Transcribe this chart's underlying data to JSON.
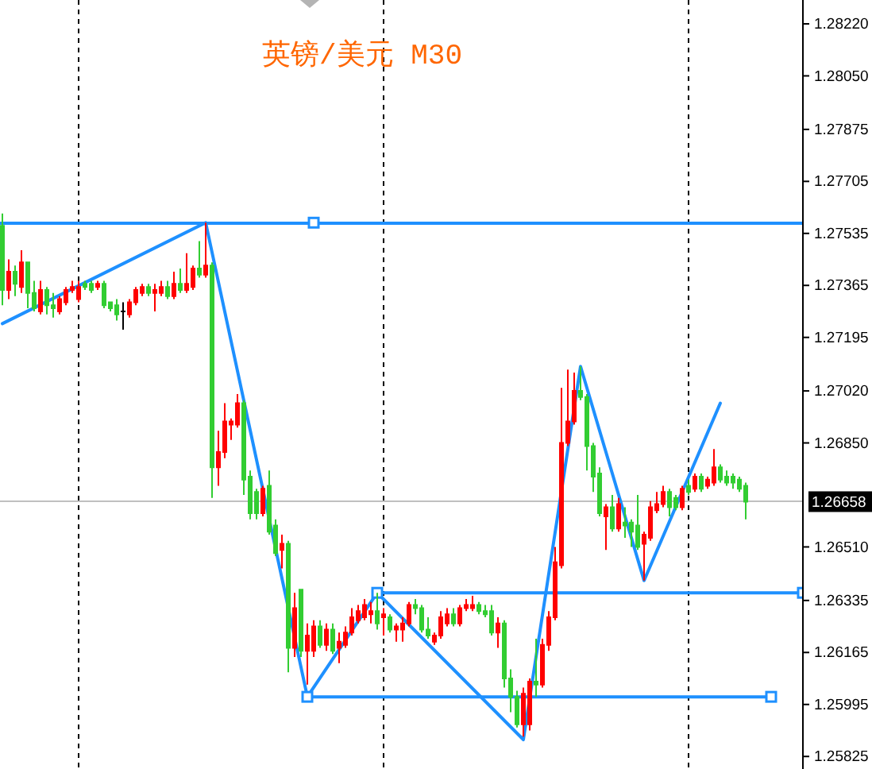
{
  "chart_data": {
    "type": "candlestick",
    "title": "英镑/美元 M30",
    "categories": [
      null,
      null,
      null,
      null,
      null,
      null,
      null,
      null,
      null,
      null,
      null,
      null,
      null,
      null,
      null,
      null,
      null,
      null,
      null,
      null,
      null,
      null,
      null,
      null,
      null,
      null,
      null,
      null,
      null,
      null,
      null,
      null,
      null,
      null,
      null,
      null,
      null,
      null,
      null,
      null,
      null,
      null,
      null,
      null,
      null,
      null,
      null,
      null,
      null,
      null,
      null,
      null,
      null,
      null,
      null,
      null,
      null,
      null,
      null,
      null,
      null,
      null,
      null,
      null,
      null,
      null,
      null,
      null,
      null,
      null,
      null,
      null,
      null,
      null,
      null,
      null,
      null,
      null,
      null,
      null,
      null,
      null,
      null,
      null,
      null,
      null,
      null,
      null,
      null,
      null,
      null,
      null,
      null,
      null,
      null,
      null,
      null,
      null,
      null,
      null,
      null,
      null,
      null,
      null,
      null,
      null,
      null,
      null,
      null,
      null,
      null,
      null,
      null,
      null,
      null,
      null,
      null,
      null,
      null,
      null,
      null,
      null,
      null,
      null,
      null,
      null,
      null
    ],
    "ohlc": [
      [
        1.2756,
        1.276,
        1.273,
        1.2735
      ],
      [
        1.2735,
        1.2745,
        1.2732,
        1.2741
      ],
      [
        1.2741,
        1.2743,
        1.2733,
        1.2737
      ],
      [
        1.2736,
        1.2748,
        1.2734,
        1.2744
      ],
      [
        1.2744,
        1.2744,
        1.2729,
        1.2734
      ],
      [
        1.2734,
        1.2738,
        1.2728,
        1.2729
      ],
      [
        1.2728,
        1.2738,
        1.2727,
        1.2735
      ],
      [
        1.2735,
        1.2736,
        1.2727,
        1.273
      ],
      [
        1.273,
        1.2734,
        1.2726,
        1.2729
      ],
      [
        1.2728,
        1.2733,
        1.2727,
        1.2732
      ],
      [
        1.2731,
        1.2736,
        1.273,
        1.2735
      ],
      [
        1.2735,
        1.2738,
        1.2734,
        1.2736
      ],
      [
        1.2732,
        1.2738,
        1.2731,
        1.2736
      ],
      [
        1.2737,
        1.2738,
        1.2735,
        1.2736
      ],
      [
        1.2737,
        1.2738,
        1.2734,
        1.2735
      ],
      [
        1.2736,
        1.2738,
        1.2735,
        1.2737
      ],
      [
        1.2737,
        1.2738,
        1.2729,
        1.273
      ],
      [
        1.2731,
        1.2731,
        1.2728,
        1.2729
      ],
      [
        1.273,
        1.2732,
        1.2725,
        1.2727
      ],
      [
        1.2728,
        1.2731,
        1.2722,
        1.2728
      ],
      [
        1.2727,
        1.2732,
        1.2726,
        1.2731
      ],
      [
        1.2731,
        1.2736,
        1.273,
        1.2735
      ],
      [
        1.2734,
        1.2737,
        1.2733,
        1.2736
      ],
      [
        1.2736,
        1.2737,
        1.2733,
        1.2734
      ],
      [
        1.2734,
        1.2737,
        1.2728,
        1.2735
      ],
      [
        1.2734,
        1.2738,
        1.2733,
        1.2736
      ],
      [
        1.2736,
        1.2738,
        1.2732,
        1.2733
      ],
      [
        1.2733,
        1.2741,
        1.2732,
        1.2737
      ],
      [
        1.2737,
        1.2742,
        1.2734,
        1.2735
      ],
      [
        1.2735,
        1.2747,
        1.2734,
        1.2737
      ],
      [
        1.2736,
        1.2743,
        1.2735,
        1.2742
      ],
      [
        1.2742,
        1.2751,
        1.2739,
        1.274
      ],
      [
        1.274,
        1.2757,
        1.2739,
        1.2743
      ],
      [
        1.2743,
        1.2744,
        1.2667,
        1.2677
      ],
      [
        1.2677,
        1.2689,
        1.2671,
        1.2682
      ],
      [
        1.2682,
        1.2698,
        1.268,
        1.2692
      ],
      [
        1.2691,
        1.2693,
        1.2686,
        1.2692
      ],
      [
        1.2691,
        1.2701,
        1.269,
        1.2698
      ],
      [
        1.2698,
        1.2699,
        1.2668,
        1.2673
      ],
      [
        1.2674,
        1.2676,
        1.266,
        1.2662
      ],
      [
        1.2669,
        1.267,
        1.266,
        1.2662
      ],
      [
        1.2662,
        1.2671,
        1.2661,
        1.267
      ],
      [
        1.2671,
        1.2676,
        1.2655,
        1.2656
      ],
      [
        1.2658,
        1.266,
        1.2648,
        1.2649
      ],
      [
        1.265,
        1.2655,
        1.2644,
        1.2652
      ],
      [
        1.2652,
        1.2653,
        1.261,
        1.2618
      ],
      [
        1.2618,
        1.2636,
        1.2615,
        1.2631
      ],
      [
        1.2637,
        1.2637,
        1.2615,
        1.2617
      ],
      [
        1.2617,
        1.2626,
        1.2606,
        1.2622
      ],
      [
        1.2617,
        1.2627,
        1.2615,
        1.2625
      ],
      [
        1.2625,
        1.2627,
        1.2618,
        1.2619
      ],
      [
        1.2619,
        1.2626,
        1.2617,
        1.2624
      ],
      [
        1.2624,
        1.2626,
        1.2616,
        1.2617
      ],
      [
        1.2618,
        1.2623,
        1.2613,
        1.262
      ],
      [
        1.2619,
        1.2625,
        1.2618,
        1.2623
      ],
      [
        1.2623,
        1.2631,
        1.2622,
        1.2628
      ],
      [
        1.2627,
        1.2632,
        1.2626,
        1.263
      ],
      [
        1.2628,
        1.2634,
        1.2627,
        1.2632
      ],
      [
        1.2629,
        1.2633,
        1.2626,
        1.263
      ],
      [
        1.263,
        1.2636,
        1.2624,
        1.2626
      ],
      [
        1.2628,
        1.2631,
        1.2622,
        1.2629
      ],
      [
        1.2628,
        1.2629,
        1.2623,
        1.2624
      ],
      [
        1.2624,
        1.2626,
        1.262,
        1.2625
      ],
      [
        1.2624,
        1.2628,
        1.262,
        1.2626
      ],
      [
        1.2626,
        1.2633,
        1.2625,
        1.2632
      ],
      [
        1.2632,
        1.2634,
        1.2629,
        1.2631
      ],
      [
        1.2631,
        1.2632,
        1.2623,
        1.2624
      ],
      [
        1.2624,
        1.2628,
        1.2621,
        1.2622
      ],
      [
        1.262,
        1.2623,
        1.2619,
        1.2622
      ],
      [
        1.2622,
        1.263,
        1.2621,
        1.2628
      ],
      [
        1.2626,
        1.2631,
        1.2625,
        1.2629
      ],
      [
        1.2629,
        1.2631,
        1.2625,
        1.2626
      ],
      [
        1.2626,
        1.2632,
        1.2625,
        1.2631
      ],
      [
        1.2631,
        1.2634,
        1.263,
        1.2632
      ],
      [
        1.2631,
        1.2635,
        1.263,
        1.2632
      ],
      [
        1.2632,
        1.2633,
        1.2629,
        1.263
      ],
      [
        1.263,
        1.2632,
        1.2628,
        1.2629
      ],
      [
        1.263,
        1.2632,
        1.2622,
        1.2623
      ],
      [
        1.2623,
        1.2628,
        1.2618,
        1.2626
      ],
      [
        1.2626,
        1.2627,
        1.2605,
        1.2608
      ],
      [
        1.2608,
        1.2611,
        1.2597,
        1.2602
      ],
      [
        1.2602,
        1.2604,
        1.2592,
        1.2593
      ],
      [
        1.2593,
        1.2605,
        1.2589,
        1.2603
      ],
      [
        1.2593,
        1.2608,
        1.2591,
        1.2607
      ],
      [
        1.2607,
        1.2621,
        1.2602,
        1.2606
      ],
      [
        1.2606,
        1.2621,
        1.2605,
        1.2619
      ],
      [
        1.2619,
        1.263,
        1.2617,
        1.2628
      ],
      [
        1.2628,
        1.2651,
        1.2627,
        1.2646
      ],
      [
        1.2645,
        1.2703,
        1.2644,
        1.2685
      ],
      [
        1.2685,
        1.2709,
        1.2684,
        1.2692
      ],
      [
        1.2692,
        1.2708,
        1.2691,
        1.2702
      ],
      [
        1.2702,
        1.271,
        1.2699,
        1.27
      ],
      [
        1.27,
        1.2701,
        1.2676,
        1.2684
      ],
      [
        1.2684,
        1.2685,
        1.2669,
        1.2674
      ],
      [
        1.2675,
        1.2677,
        1.2661,
        1.2662
      ],
      [
        1.2661,
        1.2665,
        1.265,
        1.2664
      ],
      [
        1.2664,
        1.2668,
        1.2656,
        1.2657
      ],
      [
        1.2657,
        1.2667,
        1.2656,
        1.2665
      ],
      [
        1.2659,
        1.2664,
        1.2654,
        1.2658
      ],
      [
        1.2659,
        1.266,
        1.2651,
        1.2656
      ],
      [
        1.2658,
        1.2668,
        1.265,
        1.2651
      ],
      [
        1.2652,
        1.2656,
        1.264,
        1.2655
      ],
      [
        1.2654,
        1.2666,
        1.2653,
        1.2664
      ],
      [
        1.2663,
        1.2669,
        1.2662,
        1.2665
      ],
      [
        1.2665,
        1.2671,
        1.2664,
        1.2669
      ],
      [
        1.2669,
        1.267,
        1.2661,
        1.2664
      ],
      [
        1.2667,
        1.2668,
        1.2663,
        1.2664
      ],
      [
        1.2664,
        1.2671,
        1.2663,
        1.267
      ],
      [
        1.2671,
        1.2673,
        1.2668,
        1.2669
      ],
      [
        1.267,
        1.2675,
        1.2669,
        1.2674
      ],
      [
        1.2674,
        1.2675,
        1.2669,
        1.267
      ],
      [
        1.2671,
        1.2674,
        1.267,
        1.2673
      ],
      [
        1.2672,
        1.2683,
        1.2671,
        1.2677
      ],
      [
        1.2677,
        1.2678,
        1.2672,
        1.2673
      ],
      [
        1.2674,
        1.2676,
        1.2671,
        1.2672
      ],
      [
        1.2674,
        1.2675,
        1.267,
        1.2672
      ],
      [
        1.2673,
        1.2674,
        1.2669,
        1.267
      ],
      [
        1.2671,
        1.2672,
        1.266,
        1.26658
      ],
      null,
      null,
      null,
      null,
      null,
      null,
      null,
      null,
      null
    ],
    "colors": [
      "#32cd32",
      "#ff0000",
      "#32cd32",
      "#ff0000",
      "#32cd32",
      "#32cd32",
      "#ff0000",
      "#32cd32",
      "#32cd32",
      "#ff0000",
      "#ff0000",
      "#ff0000",
      "#ff0000",
      "#32cd32",
      "#32cd32",
      "#ff0000",
      "#32cd32",
      "#32cd32",
      "#32cd32",
      "#000000",
      "#ff0000",
      "#ff0000",
      "#ff0000",
      "#32cd32",
      "#ff0000",
      "#ff0000",
      "#32cd32",
      "#ff0000",
      "#32cd32",
      "#ff0000",
      "#ff0000",
      "#32cd32",
      "#ff0000",
      "#32cd32",
      "#ff0000",
      "#ff0000",
      "#ff0000",
      "#ff0000",
      "#32cd32",
      "#32cd32",
      "#32cd32",
      "#ff0000",
      "#32cd32",
      "#32cd32",
      "#ff0000",
      "#32cd32",
      "#ff0000",
      "#32cd32",
      "#ff0000",
      "#ff0000",
      "#32cd32",
      "#ff0000",
      "#32cd32",
      "#ff0000",
      "#ff0000",
      "#ff0000",
      "#ff0000",
      "#ff0000",
      "#ff0000",
      "#32cd32",
      "#ff0000",
      "#32cd32",
      "#ff0000",
      "#ff0000",
      "#ff0000",
      "#32cd32",
      "#32cd32",
      "#32cd32",
      "#ff0000",
      "#ff0000",
      "#ff0000",
      "#32cd32",
      "#ff0000",
      "#ff0000",
      "#ff0000",
      "#32cd32",
      "#32cd32",
      "#32cd32",
      "#ff0000",
      "#32cd32",
      "#32cd32",
      "#32cd32",
      "#ff0000",
      "#ff0000",
      "#32cd32",
      "#ff0000",
      "#ff0000",
      "#ff0000",
      "#ff0000",
      "#ff0000",
      "#ff0000",
      "#32cd32",
      "#32cd32",
      "#32cd32",
      "#32cd32",
      "#ff0000",
      "#32cd32",
      "#ff0000",
      "#32cd32",
      "#32cd32",
      "#32cd32",
      "#ff0000",
      "#ff0000",
      "#ff0000",
      "#ff0000",
      "#32cd32",
      "#32cd32",
      "#ff0000",
      "#32cd32",
      "#ff0000",
      "#32cd32",
      "#ff0000",
      "#ff0000",
      "#32cd32",
      "#32cd32",
      "#32cd32",
      "#32cd32",
      "#32cd32",
      null,
      null,
      null,
      null,
      null,
      null,
      null,
      null,
      null
    ],
    "series": [
      {
        "type": "line",
        "color": "#1e90ff",
        "values": [
          1.2724,
          null,
          null,
          null,
          null,
          null,
          null,
          null,
          null,
          null,
          null,
          null,
          null,
          null,
          null,
          null,
          null,
          null,
          null,
          null,
          null,
          null,
          null,
          null,
          null,
          null,
          null,
          null,
          null,
          null,
          null,
          null,
          1.2757,
          null,
          null,
          null,
          null,
          null,
          null,
          null,
          null,
          null,
          null,
          null,
          null,
          null,
          null,
          null,
          1.2602,
          null,
          null,
          null,
          null,
          null,
          null,
          null,
          null,
          null,
          null,
          1.2636,
          null,
          null,
          null,
          null,
          null,
          null,
          null,
          null,
          null,
          null,
          null,
          null,
          null,
          null,
          null,
          null,
          null,
          null,
          null,
          null,
          null,
          null,
          1.2588,
          null,
          null,
          null,
          null,
          null,
          null,
          null,
          null,
          1.271,
          null,
          null,
          null,
          null,
          null,
          null,
          null,
          null,
          null,
          1.264,
          null,
          null,
          null,
          null,
          null,
          null,
          null,
          null,
          null,
          null,
          null,
          1.2698,
          null,
          null,
          null,
          null,
          null,
          null,
          null,
          null,
          null,
          null,
          null,
          null,
          null
        ]
      },
      {
        "type": "line",
        "color": "#1e90ff",
        "marker": "square",
        "values": [
          null,
          null,
          null,
          null,
          null,
          null,
          null,
          null,
          null,
          null,
          null,
          null,
          null,
          null,
          null,
          null,
          null,
          null,
          null,
          null,
          null,
          null,
          null,
          null,
          null,
          null,
          null,
          null,
          null,
          null,
          null,
          null,
          null,
          null,
          null,
          null,
          null,
          null,
          null,
          null,
          null,
          null,
          null,
          null,
          null,
          null,
          null,
          null,
          null,
          null,
          null,
          null,
          null,
          null,
          null,
          null,
          null,
          null,
          null,
          1.2636,
          null,
          null,
          null,
          null,
          null,
          null,
          null,
          null,
          null,
          null,
          null,
          null,
          null,
          null,
          null,
          null,
          null,
          null,
          null,
          null,
          null,
          null,
          null,
          null,
          null,
          null,
          null,
          null,
          null,
          null,
          null,
          null,
          null,
          null,
          null,
          null,
          null,
          null,
          null,
          null,
          null,
          null,
          null,
          null,
          null,
          null,
          null,
          null,
          null,
          null,
          null,
          null,
          null,
          null,
          null,
          null,
          null,
          null,
          null,
          null,
          null,
          null,
          null,
          null,
          null,
          null,
          1.2636
        ]
      },
      {
        "type": "line",
        "color": "#1e90ff",
        "marker": "square",
        "values": [
          null,
          null,
          null,
          null,
          null,
          null,
          null,
          null,
          null,
          null,
          null,
          null,
          null,
          null,
          null,
          null,
          null,
          null,
          null,
          null,
          null,
          null,
          null,
          null,
          null,
          null,
          null,
          null,
          null,
          null,
          null,
          null,
          null,
          null,
          null,
          null,
          null,
          null,
          null,
          null,
          null,
          null,
          null,
          null,
          null,
          null,
          null,
          null,
          1.2602,
          null,
          null,
          null,
          null,
          null,
          null,
          null,
          null,
          null,
          null,
          null,
          null,
          null,
          null,
          null,
          null,
          null,
          null,
          null,
          null,
          null,
          null,
          null,
          null,
          null,
          null,
          null,
          null,
          null,
          null,
          null,
          null,
          null,
          null,
          null,
          null,
          null,
          null,
          null,
          null,
          null,
          null,
          null,
          null,
          null,
          null,
          null,
          null,
          null,
          null,
          null,
          null,
          null,
          null,
          null,
          null,
          null,
          null,
          null,
          null,
          null,
          null,
          null,
          null,
          null,
          null,
          null,
          null,
          null,
          null,
          null,
          null,
          1.2602,
          null,
          null,
          null,
          null,
          null
        ]
      },
      {
        "type": "scatter",
        "color": "#1e90ff",
        "marker": "square",
        "values": [
          null,
          null,
          null,
          null,
          null,
          null,
          null,
          null,
          null,
          null,
          null,
          null,
          null,
          null,
          null,
          null,
          null,
          null,
          null,
          null,
          null,
          null,
          null,
          null,
          null,
          null,
          null,
          null,
          null,
          null,
          null,
          null,
          null,
          null,
          null,
          null,
          null,
          null,
          null,
          null,
          null,
          null,
          null,
          null,
          null,
          null,
          null,
          null,
          null,
          1.2757,
          null,
          null,
          null,
          null,
          null,
          null,
          null,
          null,
          null,
          null,
          null,
          null,
          null,
          null,
          null,
          null,
          null,
          null,
          null,
          null,
          null,
          null,
          null,
          null,
          null,
          null,
          null,
          null,
          null,
          null,
          null,
          null,
          null,
          null,
          null,
          null,
          null,
          null,
          null,
          null,
          null,
          null,
          null,
          null,
          null,
          null,
          null,
          null,
          null,
          null,
          null,
          null,
          null,
          null,
          null,
          null,
          null,
          null,
          null,
          null,
          null,
          null,
          null,
          null,
          null,
          null,
          null,
          null,
          null,
          null,
          null,
          null,
          null,
          null,
          null,
          null,
          null
        ]
      }
    ],
    "ref_lines": [
      {
        "axis": "y",
        "value": 1.2757,
        "color": "#1e90ff"
      },
      {
        "axis": "y",
        "value": 1.26658,
        "label": "1.26658",
        "color": "#c0c0c0"
      }
    ],
    "ylim": [
      1.25784,
      1.28298
    ],
    "yticks": [
      {
        "value": 1.2822,
        "label": "1.28220"
      },
      {
        "value": 1.2805,
        "label": "1.28050"
      },
      1.27875,
      1.27705,
      1.27535,
      1.27365,
      1.27195,
      {
        "value": 1.2702,
        "label": "1.27020"
      },
      {
        "value": 1.2685,
        "label": "1.26850"
      },
      {
        "value": 1.2651,
        "label": "1.26510"
      },
      1.26335,
      1.26165,
      1.25995,
      1.25825
    ],
    "tick_labels": "y"
  }
}
